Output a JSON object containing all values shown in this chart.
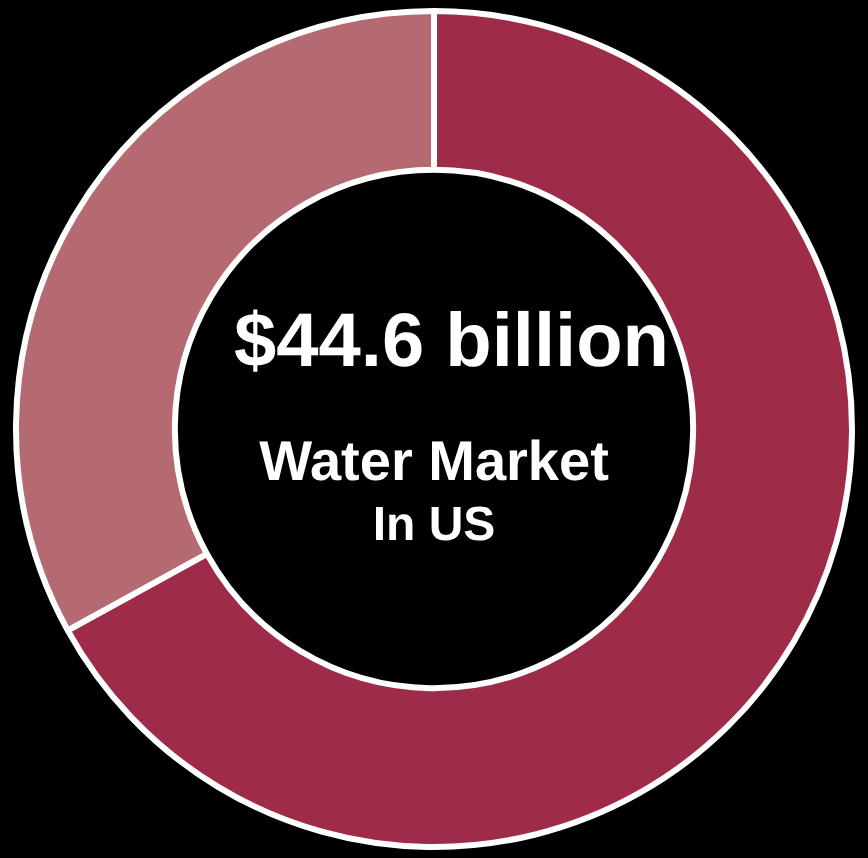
{
  "chart_data": {
    "type": "donut",
    "categories": [
      null,
      null
    ],
    "values": [
      67,
      33
    ],
    "colors": [
      "#9e2b47",
      "#b56a72"
    ],
    "annotations": [
      "$44.6 billion",
      "Water Market",
      "In US"
    ],
    "legend": false
  }
}
